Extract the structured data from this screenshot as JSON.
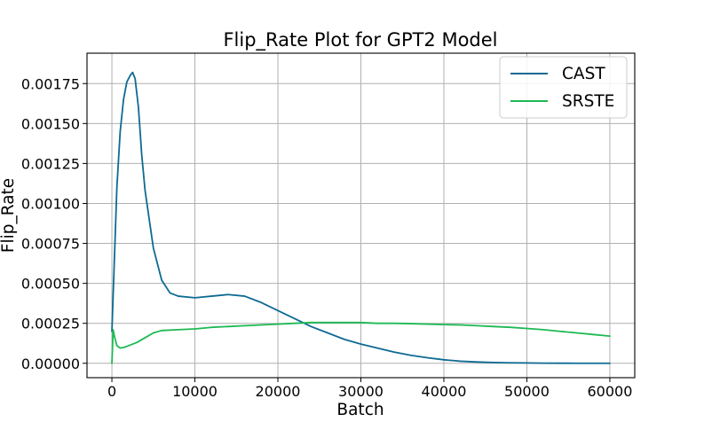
{
  "chart_data": {
    "type": "line",
    "title": "Flip_Rate Plot for GPT2 Model",
    "xlabel": "Batch",
    "ylabel": "Flip_Rate",
    "xlim": [
      -3000,
      63000
    ],
    "ylim": [
      -9e-05,
      0.00194
    ],
    "grid": true,
    "legend_position": "top-right",
    "xticks": [
      0,
      10000,
      20000,
      30000,
      40000,
      50000,
      60000
    ],
    "xtick_labels": [
      "0",
      "10000",
      "20000",
      "30000",
      "40000",
      "50000",
      "60000"
    ],
    "yticks": [
      0,
      0.00025,
      0.0005,
      0.00075,
      0.001,
      0.00125,
      0.0015,
      0.00175
    ],
    "ytick_labels": [
      "0.00000",
      "0.00025",
      "0.00050",
      "0.00075",
      "0.00100",
      "0.00125",
      "0.00150",
      "0.00175"
    ],
    "series": [
      {
        "name": "CAST",
        "color": "#0e6a93",
        "x": [
          0,
          300,
          600,
          1000,
          1400,
          1800,
          2200,
          2500,
          2800,
          3200,
          3600,
          4000,
          5000,
          6000,
          7000,
          8000,
          10000,
          12000,
          14000,
          16000,
          18000,
          20000,
          22000,
          24000,
          26000,
          28000,
          30000,
          32000,
          34000,
          36000,
          38000,
          40000,
          42000,
          44000,
          46000,
          48000,
          50000,
          52000,
          54000,
          56000,
          58000,
          60000
        ],
        "y": [
          0.0002,
          0.00065,
          0.0011,
          0.00145,
          0.00165,
          0.00176,
          0.0018,
          0.00182,
          0.00178,
          0.0016,
          0.0013,
          0.00108,
          0.00072,
          0.00052,
          0.00044,
          0.00042,
          0.00041,
          0.00042,
          0.00043,
          0.00042,
          0.00038,
          0.00033,
          0.00028,
          0.00023,
          0.00019,
          0.00015,
          0.00012,
          9.5e-05,
          7e-05,
          5e-05,
          3.5e-05,
          2.2e-05,
          1.3e-05,
          8e-06,
          5e-06,
          3e-06,
          2e-06,
          1e-06,
          5e-07,
          2e-07,
          1e-07,
          0.0
        ]
      },
      {
        "name": "SRSTE",
        "color": "#1db954",
        "x": [
          0,
          150,
          300,
          600,
          1000,
          1500,
          2000,
          3000,
          4000,
          5000,
          6000,
          8000,
          10000,
          12000,
          14000,
          16000,
          18000,
          20000,
          22000,
          24000,
          26000,
          28000,
          30000,
          32000,
          34000,
          36000,
          38000,
          40000,
          42000,
          44000,
          46000,
          48000,
          50000,
          52000,
          54000,
          56000,
          58000,
          60000
        ],
        "y": [
          0.0,
          0.00021,
          0.00017,
          0.00011,
          9.5e-05,
          0.0001,
          0.00011,
          0.00013,
          0.00016,
          0.00019,
          0.000205,
          0.00021,
          0.000215,
          0.000225,
          0.00023,
          0.000235,
          0.00024,
          0.000245,
          0.00025,
          0.000255,
          0.000255,
          0.000255,
          0.000255,
          0.00025,
          0.00025,
          0.000248,
          0.000245,
          0.000242,
          0.00024,
          0.000235,
          0.00023,
          0.000225,
          0.000218,
          0.00021,
          0.0002,
          0.00019,
          0.00018,
          0.00017
        ]
      }
    ]
  }
}
